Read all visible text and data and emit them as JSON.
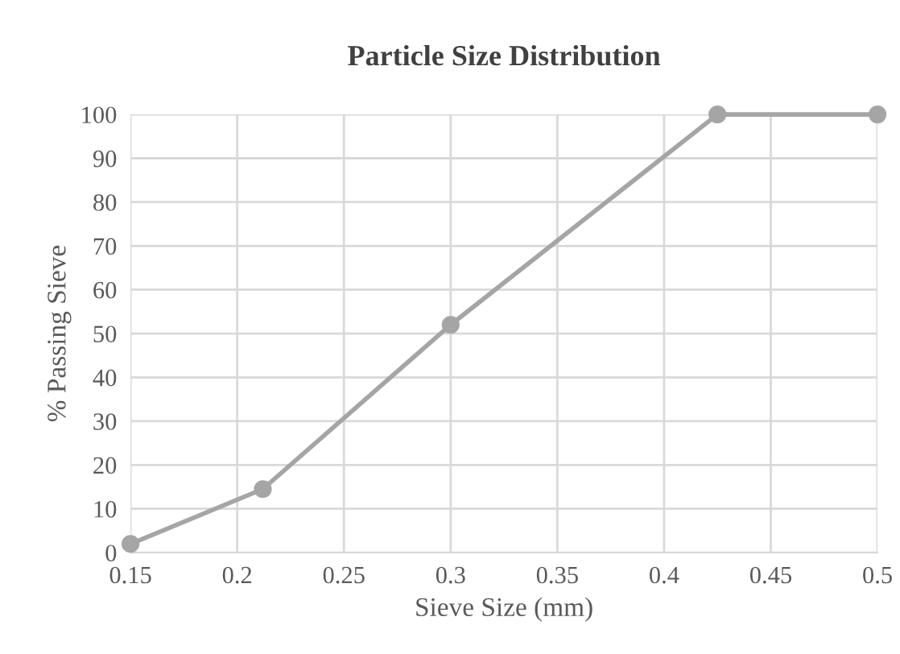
{
  "chart_data": {
    "type": "line",
    "title": "Particle Size Distribution",
    "xlabel": "Sieve Size (mm)",
    "ylabel": "% Passing Sieve",
    "series": [
      {
        "color": "#a5a5a5",
        "x": [
          0.15,
          0.212,
          0.3,
          0.425,
          0.5
        ],
        "values": [
          2,
          14.5,
          52,
          100,
          100
        ]
      }
    ],
    "xlim": [
      0.15,
      0.5
    ],
    "xticks": [
      0.15,
      0.2,
      0.25,
      0.3,
      0.35,
      0.4,
      0.45,
      0.5
    ],
    "ylim": [
      0,
      100
    ],
    "yticks": [
      0,
      10,
      20,
      30,
      40,
      50,
      60,
      70,
      80,
      90,
      100
    ],
    "grid": true,
    "marker": "circle",
    "line_style": "solid",
    "legend": false
  }
}
